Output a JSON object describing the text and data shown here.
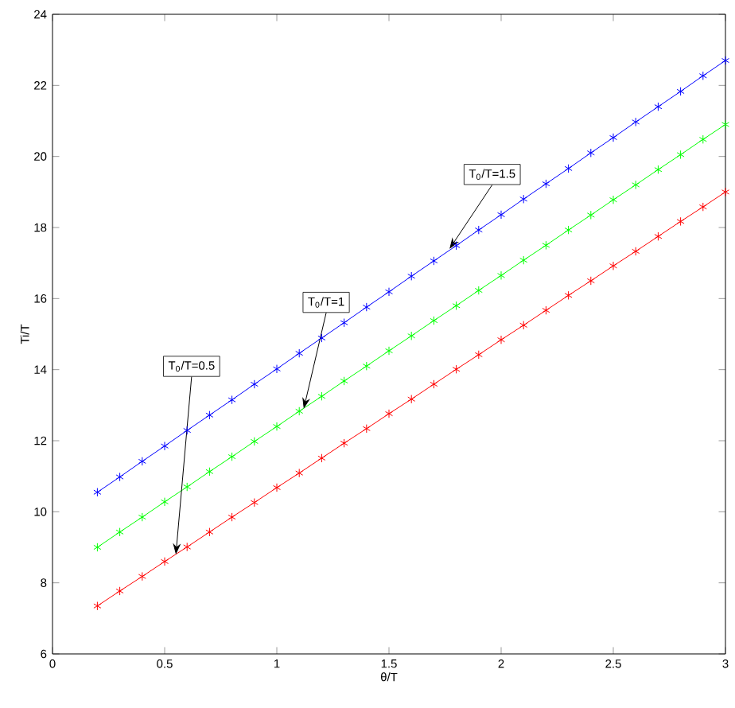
{
  "chart_data": {
    "type": "line",
    "xlabel": "θ/T",
    "ylabel": "Ti/T",
    "x": [
      0.2,
      0.3,
      0.4,
      0.5,
      0.6,
      0.7,
      0.8,
      0.9,
      1.0,
      1.1,
      1.2,
      1.3,
      1.4,
      1.5,
      1.6,
      1.7,
      1.8,
      1.9,
      2.0,
      2.1,
      2.2,
      2.3,
      2.4,
      2.5,
      2.6,
      2.7,
      2.8,
      2.9,
      3.0
    ],
    "series": [
      {
        "color": "#0000ff",
        "values": [
          10.55,
          10.98,
          11.42,
          11.85,
          12.29,
          12.72,
          13.15,
          13.59,
          14.02,
          14.46,
          14.89,
          15.32,
          15.76,
          16.19,
          16.63,
          17.06,
          17.49,
          17.93,
          18.36,
          18.8,
          19.23,
          19.66,
          20.1,
          20.53,
          20.97,
          21.4,
          21.83,
          22.27,
          22.7
        ]
      },
      {
        "color": "#00ff00",
        "values": [
          9.0,
          9.43,
          9.85,
          10.28,
          10.7,
          11.13,
          11.55,
          11.98,
          12.4,
          12.83,
          13.25,
          13.68,
          14.1,
          14.53,
          14.95,
          15.38,
          15.8,
          16.23,
          16.65,
          17.08,
          17.5,
          17.93,
          18.35,
          18.78,
          19.2,
          19.63,
          20.05,
          20.48,
          20.9
        ]
      },
      {
        "color": "#ff0000",
        "values": [
          7.35,
          7.77,
          8.18,
          8.6,
          9.01,
          9.43,
          9.85,
          10.26,
          10.68,
          11.09,
          11.51,
          11.93,
          12.34,
          12.76,
          13.17,
          13.59,
          14.01,
          14.42,
          14.84,
          15.25,
          15.67,
          16.09,
          16.5,
          16.92,
          17.33,
          17.75,
          18.17,
          18.58,
          19.0
        ]
      }
    ],
    "xlim": [
      0,
      3
    ],
    "ylim": [
      6,
      24
    ],
    "xticks": [
      0,
      0.5,
      1,
      1.5,
      2,
      2.5,
      3
    ],
    "yticks": [
      6,
      8,
      10,
      12,
      14,
      16,
      18,
      20,
      22,
      24
    ],
    "grid": false,
    "marker": "cross",
    "line_style": "solid",
    "annotations": [
      {
        "text": "T$_{0}$/T=0.5",
        "x": 0.55,
        "y": 8.8
      },
      {
        "text": "T$_{0}$/T=1",
        "x": 1.12,
        "y": 12.9
      },
      {
        "text": "T$_{0}$/T=1.5",
        "x": 1.77,
        "y": 17.4
      }
    ]
  }
}
